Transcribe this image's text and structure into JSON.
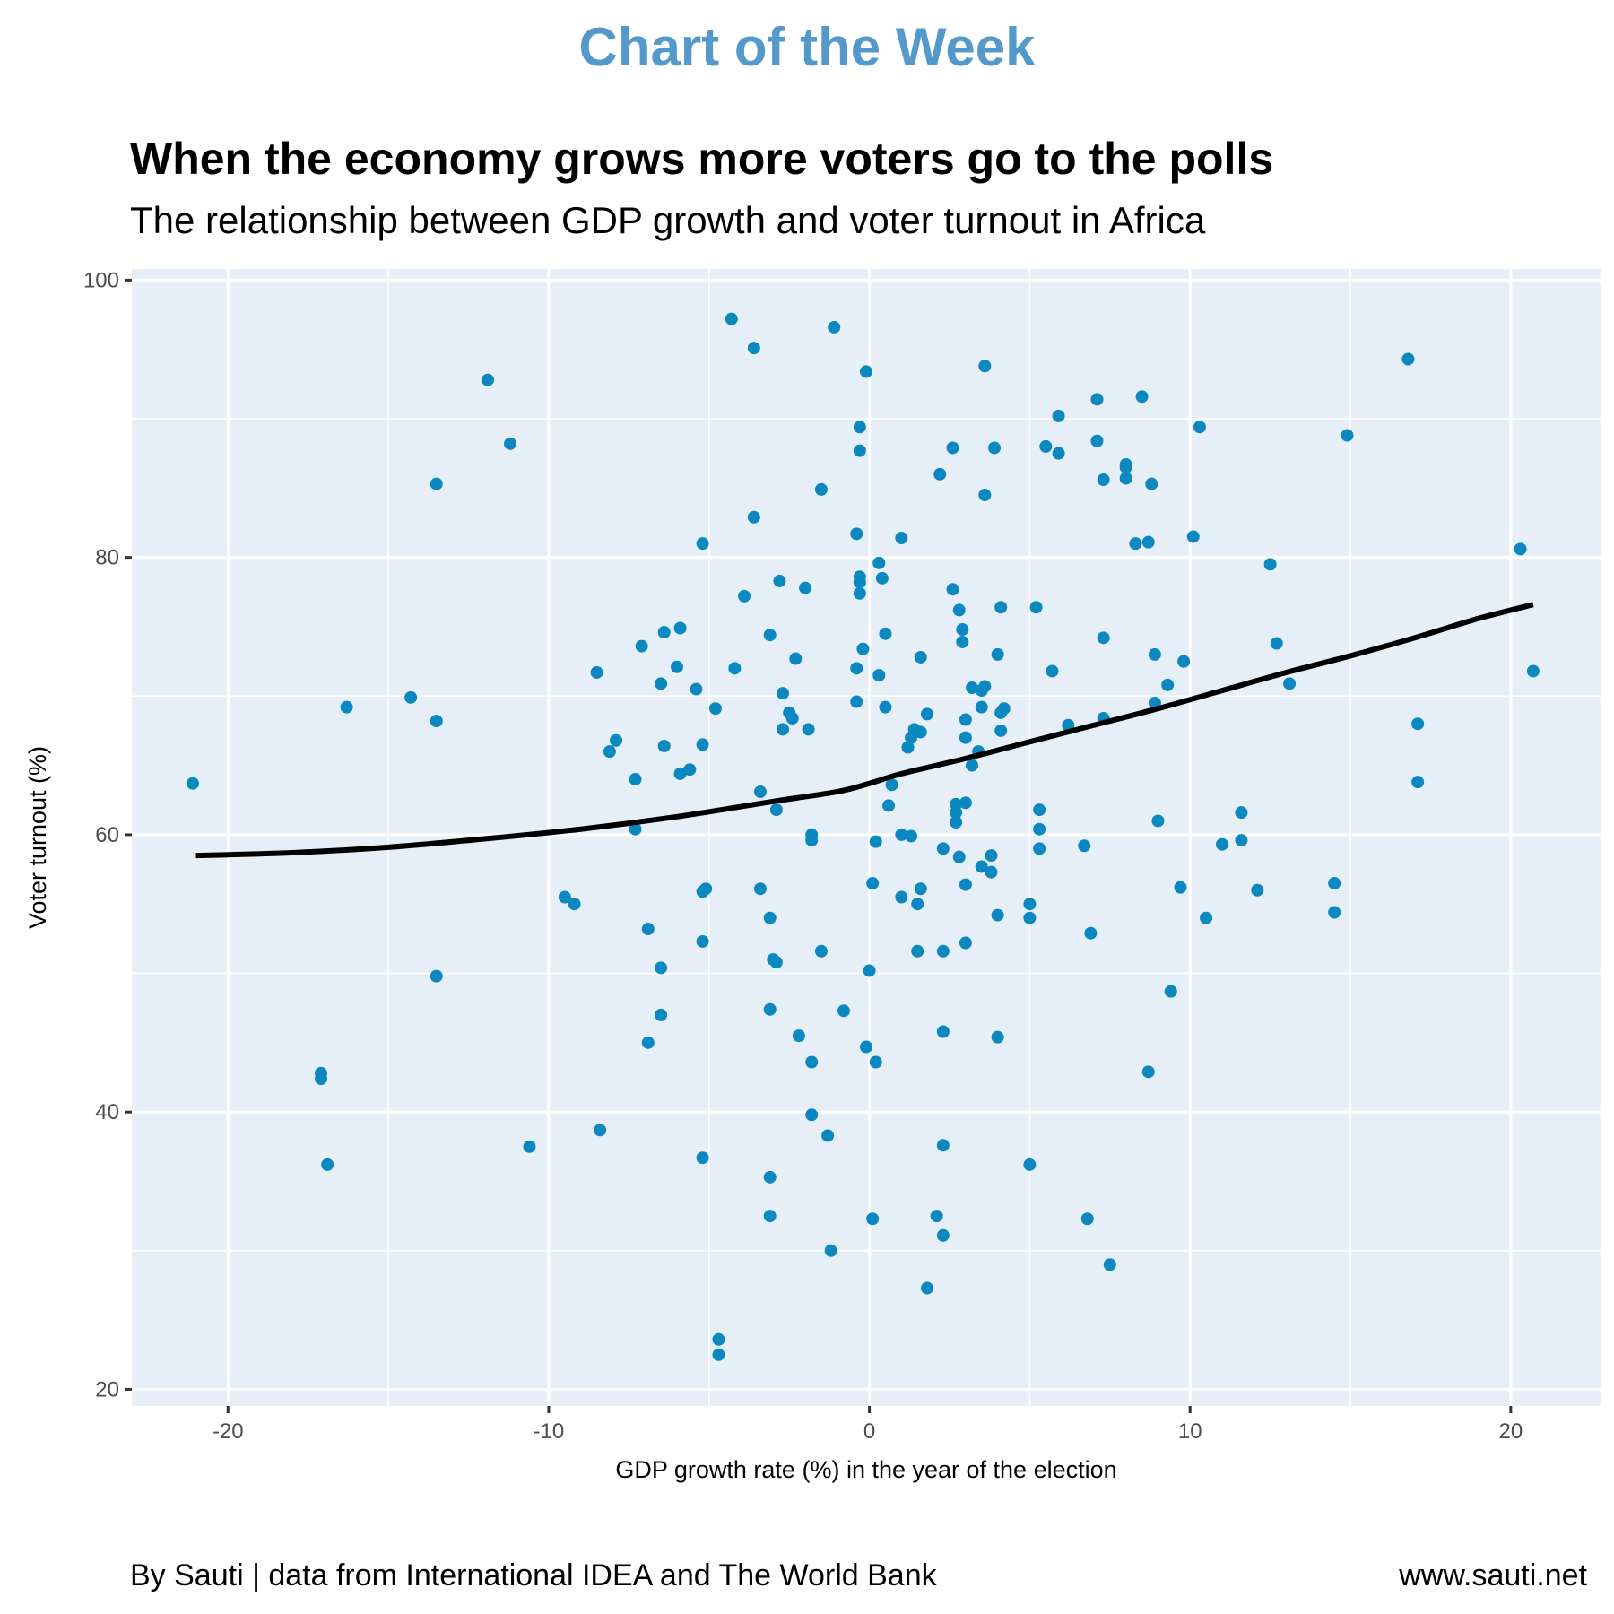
{
  "header": {
    "kicker": "Chart of the Week",
    "title": "When the economy grows more voters go to the polls",
    "subtitle": "The relationship between GDP growth and voter turnout in Africa"
  },
  "footer": {
    "source": "By Sauti | data from International IDEA and The World Bank",
    "website": "www.sauti.net"
  },
  "colors": {
    "kicker": "#5499cb",
    "panel_bg": "#e6eff8",
    "grid": "#ffffff",
    "point": "#0a88bf",
    "trend": "#000000"
  },
  "chart_data": {
    "type": "scatter",
    "title": "When the economy grows more voters go to the polls",
    "subtitle": "The relationship between GDP growth and voter turnout in Africa",
    "xlabel": "GDP growth rate (%) in the year of the election",
    "ylabel": "Voter turnout (%)",
    "xlim": [
      -23.0,
      22.8
    ],
    "ylim": [
      18.8,
      100.8
    ],
    "xticks": [
      -20,
      -10,
      0,
      10,
      20
    ],
    "xtick_labels": [
      "-20",
      "-10",
      "0",
      "10",
      "20"
    ],
    "yticks": [
      20,
      40,
      60,
      80,
      100
    ],
    "ytick_labels": [
      "20",
      "40",
      "60",
      "80",
      "100"
    ],
    "grid": true,
    "legend": "none",
    "points": [
      [
        -21.1,
        63.7
      ],
      [
        -16.3,
        69.2
      ],
      [
        -17.1,
        42.8
      ],
      [
        -17.1,
        42.4
      ],
      [
        -16.9,
        36.2
      ],
      [
        -14.3,
        69.9
      ],
      [
        -13.5,
        85.3
      ],
      [
        -13.5,
        68.2
      ],
      [
        -13.5,
        49.8
      ],
      [
        -11.9,
        92.8
      ],
      [
        -11.2,
        88.2
      ],
      [
        -10.6,
        37.5
      ],
      [
        -9.5,
        55.5
      ],
      [
        -9.2,
        55.0
      ],
      [
        -8.5,
        71.7
      ],
      [
        -8.4,
        38.7
      ],
      [
        -8.1,
        66.0
      ],
      [
        -7.9,
        66.8
      ],
      [
        -7.3,
        64.0
      ],
      [
        -7.3,
        60.4
      ],
      [
        -7.1,
        73.6
      ],
      [
        -6.9,
        53.2
      ],
      [
        -6.9,
        45.0
      ],
      [
        -6.5,
        70.9
      ],
      [
        -6.5,
        50.4
      ],
      [
        -6.5,
        47.0
      ],
      [
        -6.4,
        74.6
      ],
      [
        -6.4,
        66.4
      ],
      [
        -6.0,
        72.1
      ],
      [
        -5.9,
        74.9
      ],
      [
        -5.9,
        64.4
      ],
      [
        -5.6,
        64.7
      ],
      [
        -5.4,
        70.5
      ],
      [
        -5.2,
        81.0
      ],
      [
        -5.2,
        66.5
      ],
      [
        -5.2,
        52.3
      ],
      [
        -5.2,
        55.9
      ],
      [
        -5.1,
        56.1
      ],
      [
        -5.2,
        36.7
      ],
      [
        -4.8,
        69.1
      ],
      [
        -4.7,
        23.6
      ],
      [
        -4.7,
        22.5
      ],
      [
        -4.3,
        97.2
      ],
      [
        -4.2,
        72.0
      ],
      [
        -3.9,
        77.2
      ],
      [
        -3.6,
        95.1
      ],
      [
        -3.6,
        82.9
      ],
      [
        -3.4,
        63.1
      ],
      [
        -3.4,
        56.1
      ],
      [
        -3.1,
        74.4
      ],
      [
        -3.1,
        54.0
      ],
      [
        -3.1,
        47.4
      ],
      [
        -3.1,
        35.3
      ],
      [
        -3.1,
        32.5
      ],
      [
        -3.0,
        51.0
      ],
      [
        -2.9,
        50.8
      ],
      [
        -2.9,
        61.8
      ],
      [
        -2.8,
        78.3
      ],
      [
        -2.7,
        70.2
      ],
      [
        -2.7,
        67.6
      ],
      [
        -2.5,
        68.8
      ],
      [
        -2.4,
        68.4
      ],
      [
        -2.3,
        72.7
      ],
      [
        -2.2,
        45.5
      ],
      [
        -2.0,
        77.8
      ],
      [
        -1.9,
        67.6
      ],
      [
        -1.8,
        60.0
      ],
      [
        -1.8,
        59.6
      ],
      [
        -1.8,
        43.6
      ],
      [
        -1.8,
        39.8
      ],
      [
        -1.5,
        84.9
      ],
      [
        -1.5,
        51.6
      ],
      [
        -1.3,
        38.3
      ],
      [
        -1.2,
        30.0
      ],
      [
        -1.1,
        96.6
      ],
      [
        -0.8,
        47.3
      ],
      [
        -0.4,
        81.7
      ],
      [
        -0.4,
        72.0
      ],
      [
        -0.4,
        69.6
      ],
      [
        -0.3,
        78.6
      ],
      [
        -0.3,
        78.2
      ],
      [
        -0.3,
        77.4
      ],
      [
        -0.3,
        89.4
      ],
      [
        -0.3,
        87.7
      ],
      [
        -0.2,
        73.4
      ],
      [
        -0.1,
        93.4
      ],
      [
        -0.1,
        44.7
      ],
      [
        0.0,
        50.2
      ],
      [
        0.1,
        56.5
      ],
      [
        0.1,
        32.3
      ],
      [
        0.2,
        59.5
      ],
      [
        0.2,
        43.6
      ],
      [
        0.3,
        79.6
      ],
      [
        0.3,
        71.5
      ],
      [
        0.4,
        78.5
      ],
      [
        0.5,
        74.5
      ],
      [
        0.5,
        69.2
      ],
      [
        0.6,
        62.1
      ],
      [
        0.7,
        63.6
      ],
      [
        1.0,
        81.4
      ],
      [
        1.0,
        60.0
      ],
      [
        1.0,
        55.5
      ],
      [
        1.2,
        66.3
      ],
      [
        1.3,
        67.0
      ],
      [
        1.3,
        59.9
      ],
      [
        1.4,
        67.6
      ],
      [
        1.5,
        55.0
      ],
      [
        1.5,
        51.6
      ],
      [
        1.6,
        72.8
      ],
      [
        1.6,
        67.4
      ],
      [
        1.6,
        56.1
      ],
      [
        1.8,
        68.7
      ],
      [
        1.8,
        27.3
      ],
      [
        2.1,
        32.5
      ],
      [
        2.2,
        86.0
      ],
      [
        2.3,
        59.0
      ],
      [
        2.3,
        51.6
      ],
      [
        2.3,
        45.8
      ],
      [
        2.3,
        37.6
      ],
      [
        2.3,
        31.1
      ],
      [
        2.6,
        77.7
      ],
      [
        2.6,
        87.9
      ],
      [
        2.7,
        62.2
      ],
      [
        2.7,
        61.6
      ],
      [
        2.7,
        60.9
      ],
      [
        2.8,
        76.2
      ],
      [
        2.8,
        58.4
      ],
      [
        2.9,
        74.8
      ],
      [
        2.9,
        73.9
      ],
      [
        3.0,
        68.3
      ],
      [
        3.0,
        67.0
      ],
      [
        3.0,
        62.3
      ],
      [
        3.0,
        56.4
      ],
      [
        3.0,
        52.2
      ],
      [
        3.2,
        70.6
      ],
      [
        3.2,
        65.0
      ],
      [
        3.4,
        66.0
      ],
      [
        3.5,
        70.4
      ],
      [
        3.5,
        69.2
      ],
      [
        3.5,
        57.7
      ],
      [
        3.6,
        93.8
      ],
      [
        3.6,
        84.5
      ],
      [
        3.6,
        70.7
      ],
      [
        3.8,
        58.5
      ],
      [
        3.8,
        57.3
      ],
      [
        3.9,
        87.9
      ],
      [
        4.0,
        73.0
      ],
      [
        4.0,
        54.2
      ],
      [
        4.0,
        45.4
      ],
      [
        4.1,
        76.4
      ],
      [
        4.1,
        67.5
      ],
      [
        4.1,
        68.8
      ],
      [
        4.2,
        69.1
      ],
      [
        5.0,
        55.0
      ],
      [
        5.0,
        54.0
      ],
      [
        5.0,
        36.2
      ],
      [
        5.2,
        76.4
      ],
      [
        5.3,
        61.8
      ],
      [
        5.3,
        60.4
      ],
      [
        5.3,
        59.0
      ],
      [
        5.5,
        88.0
      ],
      [
        5.7,
        71.8
      ],
      [
        5.9,
        90.2
      ],
      [
        5.9,
        87.5
      ],
      [
        6.2,
        67.9
      ],
      [
        6.7,
        59.2
      ],
      [
        6.8,
        32.3
      ],
      [
        6.9,
        52.9
      ],
      [
        7.1,
        91.4
      ],
      [
        7.1,
        88.4
      ],
      [
        7.3,
        85.6
      ],
      [
        7.3,
        74.2
      ],
      [
        7.3,
        68.4
      ],
      [
        7.5,
        29.0
      ],
      [
        8.0,
        86.7
      ],
      [
        8.0,
        86.5
      ],
      [
        8.0,
        85.7
      ],
      [
        8.3,
        81.0
      ],
      [
        8.5,
        91.6
      ],
      [
        8.7,
        81.1
      ],
      [
        8.7,
        42.9
      ],
      [
        8.8,
        85.3
      ],
      [
        8.9,
        73.0
      ],
      [
        8.9,
        69.5
      ],
      [
        9.0,
        61.0
      ],
      [
        9.3,
        70.8
      ],
      [
        9.4,
        48.7
      ],
      [
        9.7,
        56.2
      ],
      [
        9.8,
        72.5
      ],
      [
        10.1,
        81.5
      ],
      [
        10.3,
        89.4
      ],
      [
        10.5,
        54.0
      ],
      [
        11.0,
        59.3
      ],
      [
        11.6,
        61.6
      ],
      [
        11.6,
        59.6
      ],
      [
        12.1,
        56.0
      ],
      [
        12.5,
        79.5
      ],
      [
        12.7,
        73.8
      ],
      [
        13.1,
        70.9
      ],
      [
        14.5,
        56.5
      ],
      [
        14.5,
        54.4
      ],
      [
        14.9,
        88.8
      ],
      [
        16.8,
        94.3
      ],
      [
        17.1,
        68.0
      ],
      [
        17.1,
        63.8
      ],
      [
        20.3,
        80.6
      ],
      [
        20.7,
        71.8
      ]
    ],
    "trend_line": {
      "method": "loess",
      "x": [
        -21.0,
        -18.0,
        -15.0,
        -12.0,
        -9.0,
        -6.0,
        -3.0,
        -1.0,
        0.0,
        1.0,
        3.0,
        5.0,
        7.0,
        9.0,
        11.0,
        13.0,
        15.0,
        17.0,
        19.0,
        20.7
      ],
      "y": [
        58.5,
        58.7,
        59.1,
        59.7,
        60.4,
        61.3,
        62.4,
        63.1,
        63.7,
        64.4,
        65.5,
        66.7,
        67.9,
        69.1,
        70.4,
        71.7,
        72.9,
        74.2,
        75.6,
        76.6
      ]
    }
  }
}
